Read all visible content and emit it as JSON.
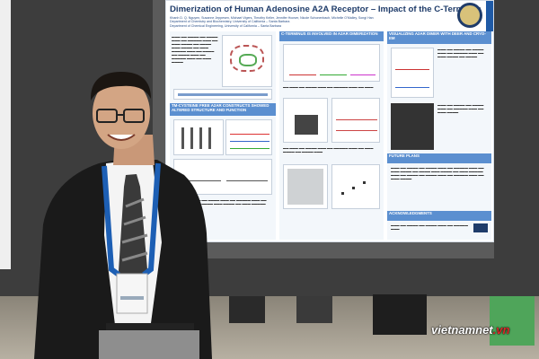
{
  "poster": {
    "title": "Dimerization of Human Adenosine A2A Receptor – Impact of the C-Terminus",
    "authors": "Khanh D. Q. Nguyen, Susanne Jeppesen, Michael Vigers, Timothy Keller, Jennifer Hoover, Nicole Schonenbach, Michelle O'Malley, Songi Han",
    "affiliation_1": "Department of Chemistry and Biochemistry, University of California – Santa Barbara",
    "affiliation_2": "Department of Chemical Engineering, University of California – Santa Barbara",
    "sections": [
      {
        "heading": "C-TERMINUS IS INVOLVED IN A2AR DIMERIZATION"
      },
      {
        "heading": "VISUALIZING A2AR DIMER WITH DEER AND CRYO-EM"
      },
      {
        "heading": "TM-CYSTEINE FREE A2AR CONSTRUCTS SHOWED ALTERED STRUCTURE AND FUNCTION"
      },
      {
        "heading": "FUTURE PLANS"
      },
      {
        "heading": "ACKNOWLEDGMENTS"
      }
    ]
  },
  "watermark": {
    "brand": "vietnamnet",
    "tld": ".vn"
  },
  "colors": {
    "poster_header": "#1f3c6a",
    "section_bar": "#5b8fd0",
    "lanyard": "#1d5fb4",
    "suit": "#1a1a1a"
  }
}
